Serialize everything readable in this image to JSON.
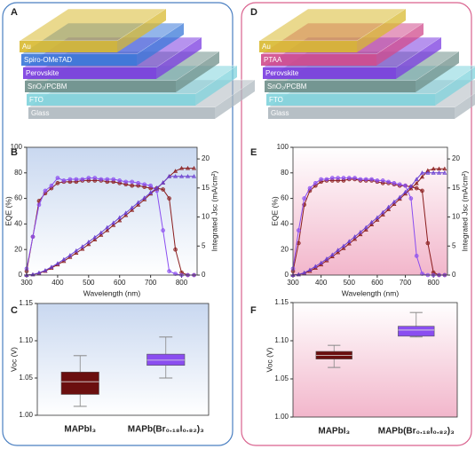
{
  "diagrams": [
    {
      "panel": "A",
      "layers": [
        {
          "name": "Au",
          "color": "#d8b930"
        },
        {
          "name": "Spiro-OMeTAD",
          "color": "#3a78d8"
        },
        {
          "name": "Perovskite",
          "color": "#7a3be0"
        },
        {
          "name": "SnO₂/PCBM",
          "color": "#6f8f8a"
        },
        {
          "name": "FTO",
          "color": "#7fd3dc"
        },
        {
          "name": "Glass",
          "color": "#aeb8bf"
        }
      ]
    },
    {
      "panel": "D",
      "layers": [
        {
          "name": "Au",
          "color": "#d8b930"
        },
        {
          "name": "PTAA",
          "color": "#d04b8c"
        },
        {
          "name": "Perovskite",
          "color": "#7a3be0"
        },
        {
          "name": "SnO₂/PCBM",
          "color": "#6f8f8a"
        },
        {
          "name": "FTO",
          "color": "#7fd3dc"
        },
        {
          "name": "Glass",
          "color": "#aeb8bf"
        }
      ]
    }
  ],
  "chart_data": [
    {
      "type": "line",
      "panel": "B",
      "x_label": "Wavelength (nm)",
      "y_label": "EQE (%)",
      "y2_label": "Integrated Jsc (mA/cm²)",
      "x": [
        300,
        320,
        340,
        360,
        380,
        400,
        420,
        440,
        460,
        480,
        500,
        520,
        540,
        560,
        580,
        600,
        620,
        640,
        660,
        680,
        700,
        720,
        740,
        760,
        780,
        800,
        820,
        840
      ],
      "xlim": [
        300,
        850
      ],
      "xticks": [
        300,
        400,
        500,
        600,
        700,
        800
      ],
      "ylim": [
        0,
        100
      ],
      "yticks": [
        0,
        20,
        40,
        60,
        80,
        100
      ],
      "y2lim": [
        0,
        22
      ],
      "y2ticks": [
        0,
        5,
        10,
        15,
        20
      ],
      "series": [
        {
          "color": "#8a1c1c",
          "values": [
            3,
            30,
            58,
            64,
            68,
            72,
            73,
            73,
            73,
            74,
            74,
            74,
            74,
            73,
            73,
            72,
            71,
            70,
            70,
            69,
            68,
            68,
            67,
            60,
            20,
            2,
            0,
            0
          ]
        },
        {
          "color": "#8a4df0",
          "values": [
            5,
            30,
            55,
            66,
            70,
            76,
            74,
            75,
            75,
            75,
            76,
            76,
            75,
            75,
            75,
            74,
            73,
            73,
            72,
            71,
            70,
            66,
            35,
            3,
            1,
            0,
            0,
            0
          ]
        },
        {
          "color": "#8a1c1c",
          "axis": "y2",
          "values": [
            0,
            0.1,
            0.3,
            0.7,
            1.2,
            1.8,
            2.4,
            3.1,
            3.8,
            4.5,
            5.3,
            6.1,
            6.9,
            7.7,
            8.6,
            9.4,
            10.3,
            11.2,
            12.1,
            13.0,
            14.0,
            14.9,
            15.9,
            17.0,
            17.9,
            18.4,
            18.4,
            18.4
          ]
        },
        {
          "color": "#6a3fd0",
          "axis": "y2",
          "values": [
            0,
            0.1,
            0.4,
            0.8,
            1.4,
            2.0,
            2.7,
            3.4,
            4.2,
            4.9,
            5.7,
            6.5,
            7.3,
            8.2,
            9.0,
            9.9,
            10.7,
            11.6,
            12.5,
            13.3,
            14.2,
            15.0,
            15.9,
            17.0,
            17.0,
            17.0,
            17.0,
            17.0
          ]
        }
      ]
    },
    {
      "type": "box",
      "panel": "C",
      "y_label": "Voc (V)",
      "categories": [
        "MAPbI₃",
        "MAPb(Br₀.₁₈I₀.₈₂)₃"
      ],
      "ylim": [
        1.0,
        1.15
      ],
      "yticks": [
        {
          "value": 1.0,
          "label": "1.00"
        },
        1.05,
        {
          "value": 1.1,
          "label": "1.10"
        },
        1.15
      ],
      "boxes": [
        {
          "color": "#6b0f0f",
          "min": 1.012,
          "q1": 1.028,
          "median": 1.045,
          "q3": 1.058,
          "max": 1.08
        },
        {
          "color": "#8a4df0",
          "min": 1.05,
          "q1": 1.067,
          "median": 1.074,
          "q3": 1.082,
          "max": 1.105
        }
      ]
    },
    {
      "type": "line",
      "panel": "E",
      "x_label": "Wavelength (nm)",
      "y_label": "EQE (%)",
      "y2_label": "Integrated Jsc (mA/cm²)",
      "x": [
        300,
        320,
        340,
        360,
        380,
        400,
        420,
        440,
        460,
        480,
        500,
        520,
        540,
        560,
        580,
        600,
        620,
        640,
        660,
        680,
        700,
        720,
        740,
        760,
        780,
        800,
        820,
        840
      ],
      "xlim": [
        300,
        850
      ],
      "xticks": [
        300,
        400,
        500,
        600,
        700,
        800
      ],
      "ylim": [
        0,
        100
      ],
      "yticks": [
        0,
        20,
        40,
        60,
        80,
        100
      ],
      "y2lim": [
        0,
        22
      ],
      "y2ticks": [
        0,
        5,
        10,
        15,
        20
      ],
      "series": [
        {
          "color": "#8a1c1c",
          "values": [
            3,
            25,
            55,
            66,
            70,
            73,
            74,
            74,
            74,
            74,
            75,
            75,
            74,
            74,
            74,
            73,
            72,
            72,
            71,
            70,
            70,
            69,
            68,
            66,
            25,
            2,
            0,
            0
          ]
        },
        {
          "color": "#8a4df0",
          "values": [
            5,
            35,
            60,
            68,
            72,
            75,
            75,
            76,
            76,
            76,
            76,
            76,
            75,
            75,
            75,
            74,
            74,
            73,
            72,
            71,
            70,
            60,
            15,
            1,
            0,
            0,
            0,
            0
          ]
        },
        {
          "color": "#8a1c1c",
          "axis": "y2",
          "values": [
            0,
            0.1,
            0.3,
            0.7,
            1.2,
            1.8,
            2.5,
            3.2,
            3.9,
            4.6,
            5.4,
            6.2,
            7.0,
            7.8,
            8.7,
            9.5,
            10.4,
            11.3,
            12.2,
            13.1,
            14.0,
            14.9,
            15.8,
            16.9,
            18.0,
            18.3,
            18.3,
            18.3
          ]
        },
        {
          "color": "#6a3fd0",
          "axis": "y2",
          "values": [
            0,
            0.1,
            0.4,
            0.9,
            1.5,
            2.1,
            2.8,
            3.5,
            4.3,
            5.0,
            5.8,
            6.6,
            7.4,
            8.2,
            9.1,
            9.9,
            10.8,
            11.7,
            12.6,
            13.4,
            14.3,
            15.3,
            16.5,
            17.6,
            17.6,
            17.6,
            17.6,
            17.6
          ]
        }
      ]
    },
    {
      "type": "box",
      "panel": "F",
      "y_label": "Voc (V)",
      "categories": [
        "MAPbI₃",
        "MAPb(Br₀.₁₈I₀.₈₂)₃"
      ],
      "ylim": [
        1.0,
        1.15
      ],
      "yticks": [
        {
          "value": 1.0,
          "label": "1.00"
        },
        1.05,
        {
          "value": 1.1,
          "label": "1.10"
        },
        1.15
      ],
      "boxes": [
        {
          "color": "#6b0f0f",
          "min": 1.065,
          "q1": 1.076,
          "median": 1.081,
          "q3": 1.086,
          "max": 1.094
        },
        {
          "color": "#8a4df0",
          "min": 1.105,
          "q1": 1.106,
          "median": 1.114,
          "q3": 1.119,
          "max": 1.137
        }
      ]
    }
  ]
}
